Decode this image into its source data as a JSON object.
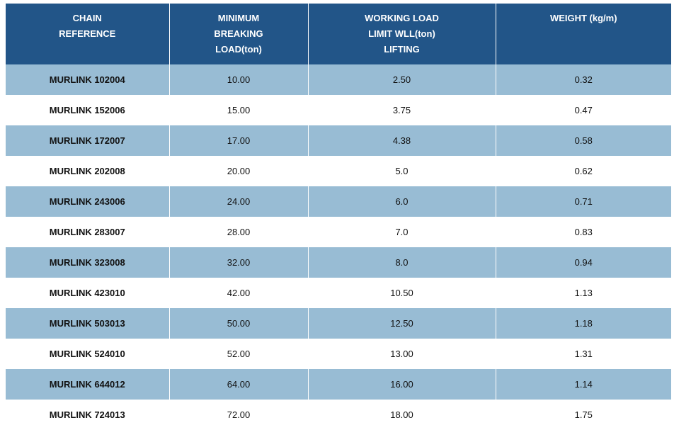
{
  "table": {
    "headers": [
      {
        "key": "ref",
        "lines": [
          "CHAIN",
          "REFERENCE"
        ]
      },
      {
        "key": "mbl",
        "lines": [
          "MINIMUM",
          "BREAKING",
          "LOAD(ton)"
        ]
      },
      {
        "key": "wll",
        "lines": [
          "WORKING LOAD",
          "LIMIT WLL(ton)",
          "LIFTING"
        ]
      },
      {
        "key": "weight",
        "lines": [
          "WEIGHT (kg/m)"
        ]
      }
    ],
    "rows": [
      {
        "ref": "MURLINK 102004",
        "mbl": "10.00",
        "wll": "2.50",
        "weight": "0.32"
      },
      {
        "ref": "MURLINK 152006",
        "mbl": "15.00",
        "wll": "3.75",
        "weight": "0.47"
      },
      {
        "ref": "MURLINK 172007",
        "mbl": "17.00",
        "wll": "4.38",
        "weight": "0.58"
      },
      {
        "ref": "MURLINK 202008",
        "mbl": "20.00",
        "wll": "5.0",
        "weight": "0.62"
      },
      {
        "ref": "MURLINK 243006",
        "mbl": "24.00",
        "wll": "6.0",
        "weight": "0.71"
      },
      {
        "ref": "MURLINK 283007",
        "mbl": "28.00",
        "wll": "7.0",
        "weight": "0.83"
      },
      {
        "ref": "MURLINK 323008",
        "mbl": "32.00",
        "wll": "8.0",
        "weight": "0.94"
      },
      {
        "ref": "MURLINK 423010",
        "mbl": "42.00",
        "wll": "10.50",
        "weight": "1.13"
      },
      {
        "ref": "MURLINK 503013",
        "mbl": "50.00",
        "wll": "12.50",
        "weight": "1.18"
      },
      {
        "ref": "MURLINK 524010",
        "mbl": "52.00",
        "wll": "13.00",
        "weight": "1.31"
      },
      {
        "ref": "MURLINK 644012",
        "mbl": "64.00",
        "wll": "16.00",
        "weight": "1.14"
      },
      {
        "ref": "MURLINK 724013",
        "mbl": "72.00",
        "wll": "18.00",
        "weight": "1.75"
      }
    ]
  },
  "colors": {
    "header_bg": "#225588",
    "header_text": "#ffffff",
    "row_shaded": "#98bcd4",
    "row_plain": "#ffffff"
  }
}
